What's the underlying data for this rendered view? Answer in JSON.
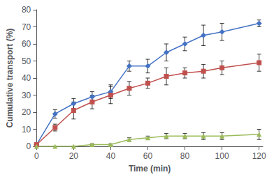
{
  "chart_data": {
    "type": "line",
    "xlabel": "Time (min)",
    "ylabel": "Cumulative transport (%)",
    "x": [
      0,
      10,
      20,
      30,
      40,
      50,
      60,
      70,
      80,
      90,
      100,
      120
    ],
    "series": [
      {
        "color": "#4472C4",
        "marker": "diamond",
        "values": [
          1,
          19,
          25,
          29,
          32,
          47,
          47,
          55,
          60,
          65,
          67,
          72
        ],
        "errors": [
          0,
          2.5,
          3,
          3,
          4,
          3,
          4,
          5,
          4,
          6,
          5,
          2
        ]
      },
      {
        "color": "#C0504D",
        "marker": "square",
        "values": [
          1,
          11,
          21,
          26,
          30,
          34,
          37,
          41,
          43,
          44,
          46,
          49
        ],
        "errors": [
          0,
          2,
          5,
          4,
          5,
          4,
          3,
          5,
          3,
          4,
          4,
          5
        ]
      },
      {
        "color": "#9BBB59",
        "marker": "triangle",
        "values": [
          0,
          0,
          0,
          1,
          1,
          4,
          5,
          6,
          6,
          6,
          6,
          7
        ],
        "errors": [
          0,
          0,
          0,
          0.5,
          0.5,
          1,
          1,
          1.5,
          1.5,
          2,
          2,
          3
        ]
      }
    ],
    "xlim": [
      0,
      122
    ],
    "xticks": [
      0,
      20,
      40,
      60,
      80,
      100,
      120
    ],
    "ylim": [
      0,
      80
    ],
    "yticks": [
      0,
      10,
      20,
      30,
      40,
      50,
      60,
      70,
      80
    ],
    "grid": false
  }
}
